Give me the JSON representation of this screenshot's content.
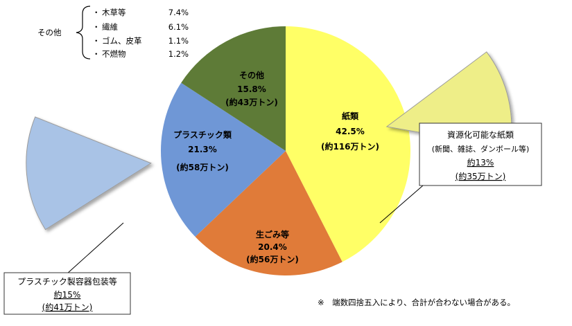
{
  "chart_data": {
    "type": "pie",
    "slices": [
      {
        "key": "paper",
        "label": "紙類",
        "percent": "42.5%",
        "tonnage": "(約116万トン)",
        "value": 42.5,
        "color": "#FFFF66"
      },
      {
        "key": "food",
        "label": "生ごみ等",
        "percent": "20.4%",
        "tonnage": "(約56万トン)",
        "value": 20.4,
        "color": "#E07B39"
      },
      {
        "key": "plastic",
        "label": "プラスチック類",
        "percent": "21.3%",
        "tonnage": "(約58万トン)",
        "value": 21.3,
        "color": "#6F97D6"
      },
      {
        "key": "other",
        "label": "その他",
        "percent": "15.8%",
        "tonnage": "(約43万トン)",
        "value": 15.8,
        "color": "#5E7B37"
      }
    ],
    "exploded": [
      {
        "key": "paper-recyclable",
        "parent": "paper",
        "value": 13,
        "color": "#EEEE88",
        "title": "資源化可能な紙類",
        "subtitle": "(新聞、雑誌、ダンボール等)",
        "percent": "約13%",
        "tonnage": "(約35万トン)"
      },
      {
        "key": "plastic-packaging",
        "parent": "plastic",
        "value": 15,
        "color": "#A9C3E6",
        "title": "プラスチック製容器包装等",
        "percent": "約15%",
        "tonnage": "(約41万トン)"
      }
    ],
    "other_breakdown": {
      "label": "その他",
      "items": [
        {
          "bullet": "・",
          "name": "木草等",
          "value": "7.4%"
        },
        {
          "bullet": "・",
          "name": "繊維",
          "value": "6.1%"
        },
        {
          "bullet": "・",
          "name": "ゴム、皮革",
          "value": "1.1%"
        },
        {
          "bullet": "・",
          "name": "不燃物",
          "value": "1.2%"
        }
      ]
    },
    "footnote": "※　端数四捨五入により、合計が合わない場合がある。"
  }
}
